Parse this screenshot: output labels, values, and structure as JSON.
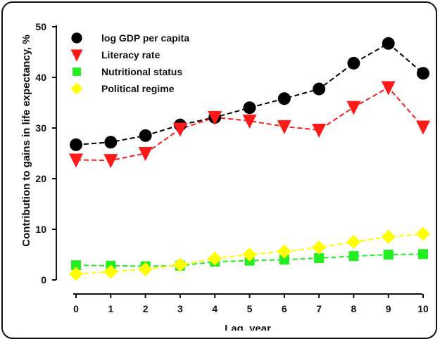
{
  "chart_data": {
    "type": "line",
    "title": "",
    "xlabel": "Lag, year",
    "ylabel": "Contribution to gains in life expectancy, %",
    "x": [
      0,
      1,
      2,
      3,
      4,
      5,
      6,
      7,
      8,
      9,
      10
    ],
    "xticks": [
      "0",
      "1",
      "2",
      "3",
      "4",
      "5",
      "6",
      "7",
      "8",
      "9",
      "10"
    ],
    "ylim": [
      0,
      50
    ],
    "yticks": [
      "0",
      "10",
      "20",
      "30",
      "40",
      "50"
    ],
    "grid": false,
    "legend_position": "top-left",
    "series": [
      {
        "name": "log GDP per capita",
        "marker": "circle",
        "color": "#000000",
        "values": [
          26.7,
          27.2,
          28.5,
          30.6,
          32.1,
          34.0,
          35.8,
          37.7,
          42.8,
          46.7,
          40.8
        ]
      },
      {
        "name": "Literacy rate",
        "marker": "triangle-down",
        "color": "#ff1a1a",
        "values": [
          23.7,
          23.6,
          25.0,
          29.8,
          32.1,
          31.4,
          30.3,
          29.6,
          34.1,
          38.0,
          30.2
        ]
      },
      {
        "name": "Nutritional status",
        "marker": "square",
        "color": "#22ee22",
        "values": [
          2.9,
          2.8,
          2.7,
          2.8,
          3.6,
          3.8,
          4.0,
          4.3,
          4.7,
          5.0,
          5.1
        ]
      },
      {
        "name": "Political regime",
        "marker": "diamond",
        "color": "#ffff00",
        "values": [
          1.2,
          1.6,
          2.1,
          3.0,
          4.2,
          5.0,
          5.6,
          6.4,
          7.5,
          8.5,
          9.1
        ]
      }
    ]
  }
}
